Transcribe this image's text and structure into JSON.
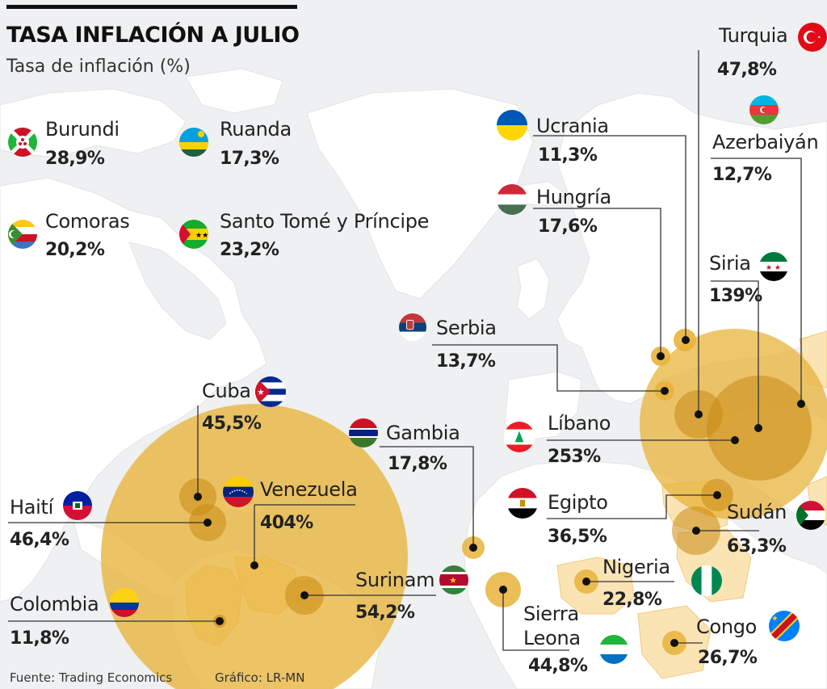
{
  "title": "TASA INFLACIÓN A JULIO",
  "subtitle": "Tasa de inflación (%)",
  "source": "Fuente: Trading Economics",
  "credit": "Gráfico: LR-MN",
  "colors": {
    "bubble": "#e8b33a",
    "bubble_dark": "#c98a14",
    "land": "#ffffff",
    "ocean": "#eef0f1",
    "highlight_land": "#fbe4b4"
  },
  "legend": [
    {
      "name": "Burundi",
      "value": "28,9%",
      "flag": "burundi-flag"
    },
    {
      "name": "Ruanda",
      "value": "17,3%",
      "flag": "rwanda-flag"
    },
    {
      "name": "Comoras",
      "value": "20,2%",
      "flag": "comoros-flag"
    },
    {
      "name": "Santo Tomé y Príncipe",
      "value": "23,2%",
      "flag": "sao-tome-flag"
    }
  ],
  "countries": [
    {
      "name": "Turquia",
      "value": "47,8%",
      "flag": "turkey-flag"
    },
    {
      "name": "Azerbaiyán",
      "value": "12,7%",
      "flag": "azerbaijan-flag"
    },
    {
      "name": "Ucrania",
      "value": "11,3%",
      "flag": "ukraine-flag"
    },
    {
      "name": "Hungría",
      "value": "17,6%",
      "flag": "hungary-flag"
    },
    {
      "name": "Siria",
      "value": "139%",
      "flag": "syria-flag"
    },
    {
      "name": "Serbia",
      "value": "13,7%",
      "flag": "serbia-flag"
    },
    {
      "name": "Líbano",
      "value": "253%",
      "flag": "lebanon-flag"
    },
    {
      "name": "Egipto",
      "value": "36,5%",
      "flag": "egypt-flag"
    },
    {
      "name": "Sudán",
      "value": "63,3%",
      "flag": "sudan-flag"
    },
    {
      "name": "Nigeria",
      "value": "22,8%",
      "flag": "nigeria-flag"
    },
    {
      "name": "Congo",
      "value": "26,7%",
      "flag": "congo-flag"
    },
    {
      "name": "Sierra",
      "name2": "Leona",
      "value": "44,8%",
      "flag": "sierra-leone-flag"
    },
    {
      "name": "Gambia",
      "value": "17,8%",
      "flag": "gambia-flag"
    },
    {
      "name": "Surinam",
      "value": "54,2%",
      "flag": "suriname-flag"
    },
    {
      "name": "Cuba",
      "value": "45,5%",
      "flag": "cuba-flag"
    },
    {
      "name": "Venezuela",
      "value": "404%",
      "flag": "venezuela-flag"
    },
    {
      "name": "Haití",
      "value": "46,4%",
      "flag": "haiti-flag"
    },
    {
      "name": "Colombia",
      "value": "11,8%",
      "flag": "colombia-flag"
    }
  ]
}
